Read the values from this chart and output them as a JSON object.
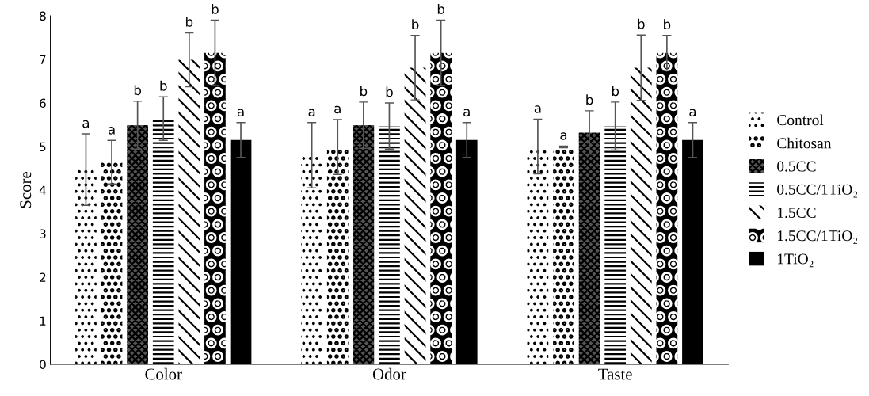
{
  "chart_data": {
    "type": "bar",
    "ylabel": "Score",
    "categories": [
      "Color",
      "Odor",
      "Taste"
    ],
    "ylim": [
      0,
      8
    ],
    "yticks": [
      0,
      1,
      2,
      3,
      4,
      5,
      6,
      7,
      8
    ],
    "grid": false,
    "legend": "right",
    "series": [
      {
        "name": "Control",
        "color": "#000000",
        "values": [
          4.47,
          4.8,
          5.0
        ],
        "errors": [
          0.82,
          0.75,
          0.63
        ],
        "value_labels": [
          "a",
          "a",
          "a"
        ]
      },
      {
        "name": "Chitosan",
        "color": "#000000",
        "values": [
          4.64,
          4.99,
          4.99
        ],
        "errors": [
          0.5,
          0.63,
          0.02
        ],
        "value_labels": [
          "a",
          "a",
          "a"
        ]
      },
      {
        "name": "0.5CC",
        "color": "#000000",
        "values": [
          5.49,
          5.49,
          5.32
        ],
        "errors": [
          0.55,
          0.53,
          0.5
        ],
        "value_labels": [
          "b",
          "b",
          "b"
        ]
      },
      {
        "name": "0.5CC/1TiO₂",
        "color": "#000000",
        "values": [
          5.64,
          5.47,
          5.47
        ],
        "errors": [
          0.5,
          0.53,
          0.55
        ],
        "value_labels": [
          "b",
          "b",
          "b"
        ]
      },
      {
        "name": "1.5CC",
        "color": "#000000",
        "values": [
          6.99,
          6.81,
          6.81
        ],
        "errors": [
          0.62,
          0.74,
          0.75
        ],
        "value_labels": [
          "b",
          "b",
          "b"
        ]
      },
      {
        "name": "1.5CC/1TiO₂",
        "color": "#000000",
        "values": [
          7.15,
          7.15,
          7.15
        ],
        "errors": [
          0.75,
          0.75,
          0.4
        ],
        "value_labels": [
          "b",
          "b",
          "b"
        ]
      },
      {
        "name": "1TiO₂",
        "color": "#000000",
        "values": [
          5.15,
          5.15,
          5.15
        ],
        "errors": [
          0.4,
          0.4,
          0.4
        ],
        "value_labels": [
          "a",
          "a",
          "a"
        ]
      }
    ]
  }
}
